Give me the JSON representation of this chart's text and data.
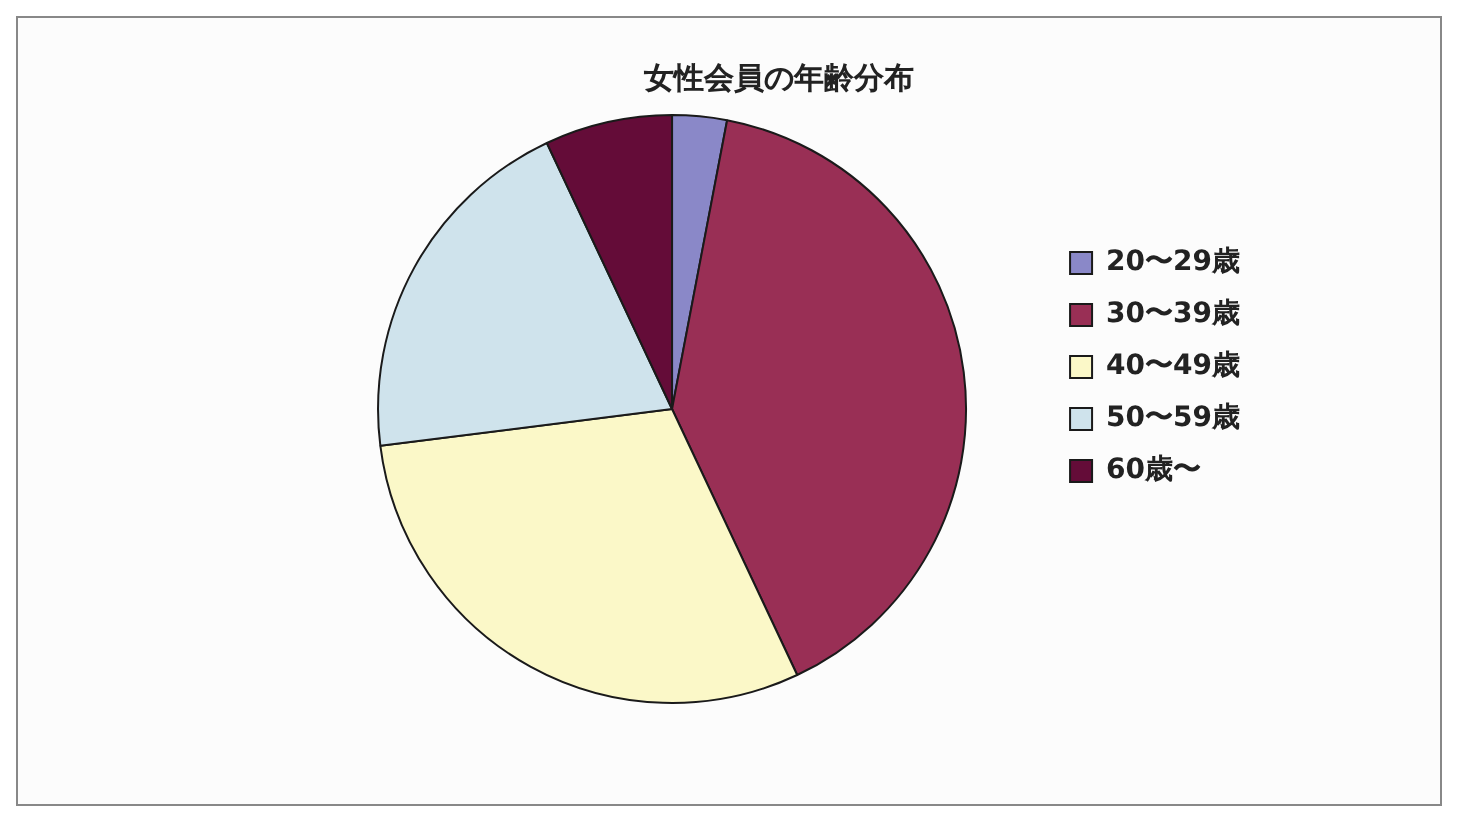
{
  "chart_data": {
    "type": "pie",
    "title": "女性会員の年齢分布",
    "categories": [
      "20〜29歳",
      "30〜39歳",
      "40〜49歳",
      "50〜59歳",
      "60歳〜"
    ],
    "values": [
      3,
      40,
      30,
      20,
      7
    ],
    "colors": [
      "#8a88c8",
      "#992f55",
      "#fbf8c8",
      "#cfe3ec",
      "#640c38"
    ],
    "legend": "right"
  }
}
